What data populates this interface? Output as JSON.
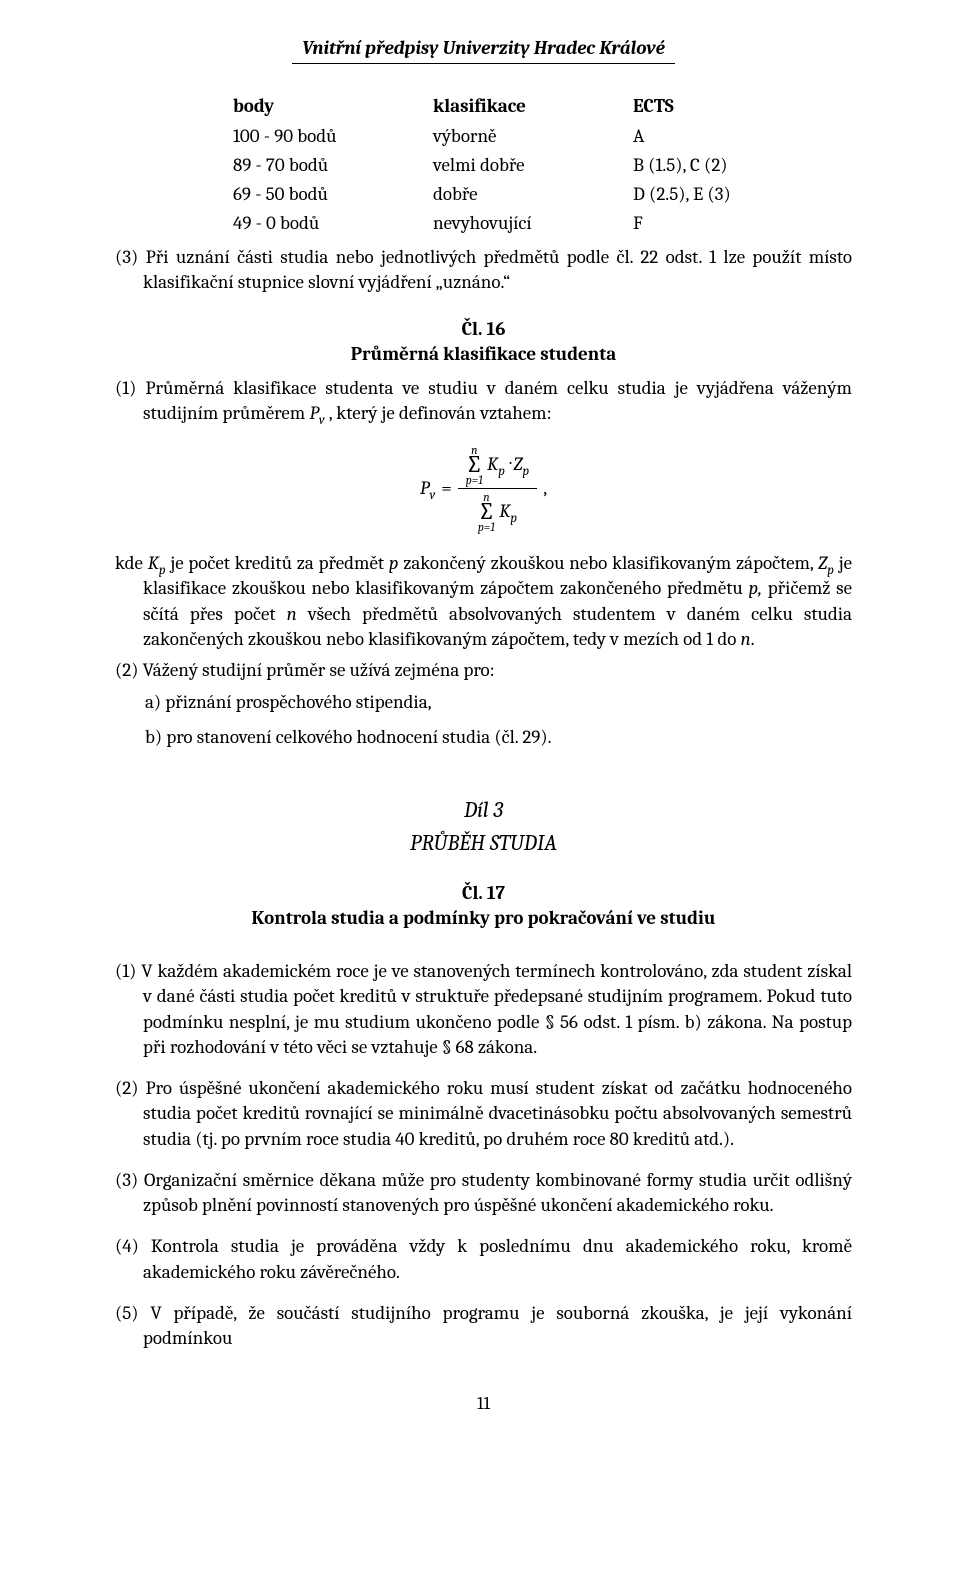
{
  "header": "Vnitřní předpisy Univerzity Hradec Králové",
  "table": {
    "head": {
      "c1": "body",
      "c2": "klasifikace",
      "c3": "ECTS"
    },
    "rows": [
      {
        "c1": "100 - 90 bodů",
        "c2": "výborně",
        "c3": "A"
      },
      {
        "c1": "89 - 70 bodů",
        "c2": "velmi dobře",
        "c3": "B (1.5), C (2)"
      },
      {
        "c1": "69 - 50 bodů",
        "c2": "dobře",
        "c3": "D (2.5), E (3)"
      },
      {
        "c1": "49 -   0 bodů",
        "c2": "nevyhovující",
        "c3": "F"
      }
    ]
  },
  "p3": "(3) Při uznání části studia nebo jednotlivých předmětů podle čl. 22 odst. 1 lze použít místo klasifikační stupnice slovní vyjádření „uznáno.“",
  "cl16": {
    "num": "Čl. 16",
    "title": "Průměrná klasifikace studenta"
  },
  "p16_1_lead": "(1) Průměrná klasifikace studenta ve studiu v daném celku studia je vyjádřena váženým studijním průměrem ",
  "p16_1_pv": "P",
  "p16_1_pv_sub": "v",
  "p16_1_tail": " , který je definován vztahem:",
  "formula": {
    "lhs": "P",
    "lhs_sub": "v",
    "eq": " = ",
    "top_n": "n",
    "bot_p": "p=1",
    "KpZp": "K",
    "Kp_sub": "p",
    "Zp": "· Z",
    "Zp_sub": "p",
    "den_K": "K",
    "den_K_sub": "p",
    "comma": " ,"
  },
  "p16_kde": "kde K<sub>p</sub> je počet kreditů za předmět p zakončený zkouškou nebo klasifikovaným zápočtem, Z<sub>p</sub> je klasifikace zkouškou nebo klasifikovaným zápočtem zakončeného předmětu p, přičemž se sčítá přes počet n všech předmětů absolvovaných studentem v daném celku studia zakončených zkouškou nebo klasifikovaným zápočtem, tedy v mezích od 1 do n.",
  "p16_2": "(2) Vážený studijní průměr se užívá zejména pro:",
  "p16_2a": "a)  přiznání prospěchového stipendia,",
  "p16_2b": "b)  pro stanovení celkového hodnocení studia (čl. 29).",
  "dil": "Díl 3",
  "dil_title": "PRŮBĚH STUDIA",
  "cl17": {
    "num": "Čl. 17",
    "title": "Kontrola studia a podmínky pro pokračování ve studiu"
  },
  "p17_1": "(1) V každém akademickém roce je ve stanovených termínech kontrolováno, zda student získal v dané části studia počet kreditů v struktuře předepsané studijním programem. Pokud tuto podmínku nesplní, je mu studium ukončeno podle § 56 odst. 1 písm. b) zákona. Na postup při rozhodování v této věci se vztahuje § 68 zákona.",
  "p17_2": "(2) Pro úspěšné ukončení akademického roku musí student získat od začátku hodnoceného studia počet kreditů rovnající se minimálně dvacetinásobku počtu absolvovaných semestrů studia (tj. po prvním roce studia 40 kreditů, po druhém roce 80 kreditů atd.).",
  "p17_3": "(3) Organizační směrnice děkana může pro studenty kombinované formy studia určit odlišný způsob plnění povinností stanovených pro úspěšné ukončení akademického roku.",
  "p17_4": "(4) Kontrola studia je prováděna vždy k poslednímu dnu akademického roku, kromě akademického roku závěrečného.",
  "p17_5": "(5) V případě, že součástí studijního programu je souborná zkouška, je její vykonání podmínkou",
  "page": "11"
}
